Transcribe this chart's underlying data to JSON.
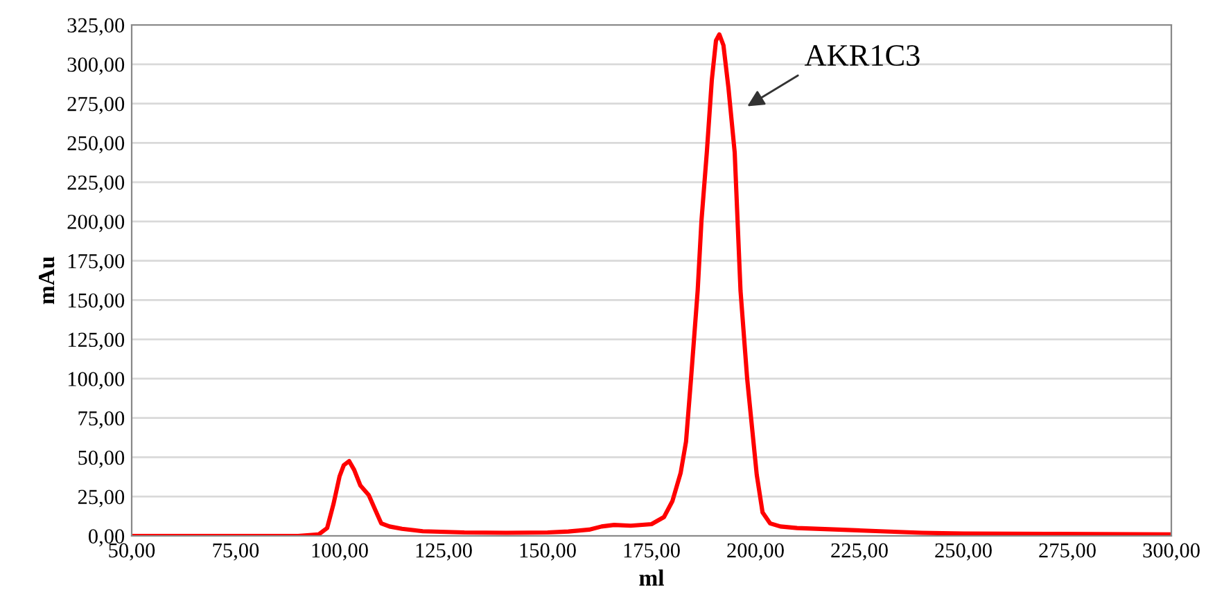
{
  "chart_data": {
    "type": "line",
    "xlabel": "ml",
    "ylabel": "mAu",
    "xlim": [
      50,
      300
    ],
    "xticks": [
      {
        "value": 50,
        "label": "50,00"
      },
      {
        "value": 75,
        "label": "75,00"
      },
      {
        "value": 100,
        "label": "100,00"
      },
      {
        "value": 125,
        "label": "125,00"
      },
      {
        "value": 150,
        "label": "150,00"
      },
      {
        "value": 175,
        "label": "175,00"
      },
      {
        "value": 200,
        "label": "200,00"
      },
      {
        "value": 225,
        "label": "225,00"
      },
      {
        "value": 250,
        "label": "250,00"
      },
      {
        "value": 275,
        "label": "275,00"
      },
      {
        "value": 300,
        "label": "300,00"
      }
    ],
    "ylim": [
      0,
      325
    ],
    "yticks": [
      {
        "value": 0,
        "label": "0,00"
      },
      {
        "value": 25,
        "label": "25,00"
      },
      {
        "value": 50,
        "label": "50,00"
      },
      {
        "value": 75,
        "label": "75,00"
      },
      {
        "value": 100,
        "label": "100,00"
      },
      {
        "value": 125,
        "label": "125,00"
      },
      {
        "value": 150,
        "label": "150,00"
      },
      {
        "value": 175,
        "label": "175,00"
      },
      {
        "value": 200,
        "label": "200,00"
      },
      {
        "value": 225,
        "label": "225,00"
      },
      {
        "value": 250,
        "label": "250,00"
      },
      {
        "value": 275,
        "label": "275,00"
      },
      {
        "value": 300,
        "label": "300,00"
      },
      {
        "value": 325,
        "label": "325,00"
      }
    ],
    "grid": "y",
    "marker": "none",
    "line_style": "solid",
    "series": [
      {
        "color": "#ff0000",
        "x": [
          50,
          90,
          95,
          97,
          98.5,
          100,
          101,
          102.3,
          103.5,
          105,
          107,
          108.5,
          110,
          112,
          115,
          120,
          130,
          140,
          150,
          155,
          160,
          163,
          166,
          170,
          175,
          178,
          180,
          182,
          183.3,
          184.5,
          186.1,
          187,
          188.3,
          189.5,
          190.5,
          191.3,
          192.3,
          193.5,
          195,
          196.4,
          198,
          200.3,
          201.7,
          203.5,
          206,
          210,
          220,
          230,
          240,
          250,
          270,
          300
        ],
        "values": [
          0,
          0,
          1,
          5,
          20,
          38,
          45,
          47.6,
          42,
          32,
          26,
          17,
          8,
          6,
          4.5,
          3,
          2.2,
          2,
          2.2,
          2.8,
          4,
          6,
          7,
          6.5,
          7.5,
          12,
          22,
          40,
          60,
          100,
          156,
          200,
          244,
          290,
          315,
          319,
          312,
          285,
          244,
          156,
          100,
          39,
          15,
          8,
          6,
          5,
          4,
          3,
          2,
          1.5,
          1.3,
          1
        ]
      }
    ],
    "annotations": [
      "AKR1C3"
    ]
  }
}
